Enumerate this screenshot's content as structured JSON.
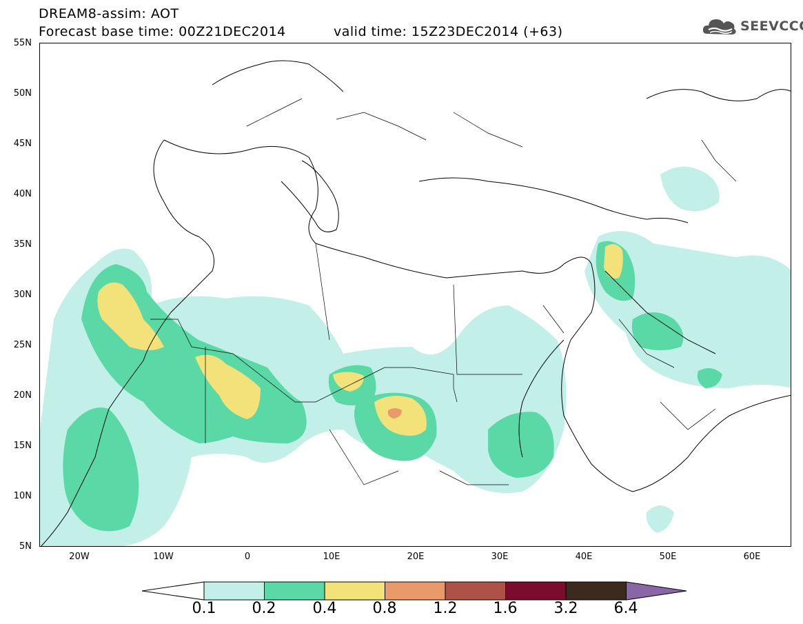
{
  "header": {
    "title": "DREAM8-assim: AOT",
    "base_time": "Forecast base time: 00Z21DEC2014",
    "valid_time": "valid time: 15Z23DEC2014 (+63)",
    "logo_text": "SEEVCCC"
  },
  "map": {
    "variable": "AOT",
    "region": {
      "lon": [
        -25,
        65
      ],
      "lat": [
        5,
        55
      ]
    },
    "y_ticks": [
      "55N",
      "50N",
      "45N",
      "40N",
      "35N",
      "30N",
      "25N",
      "20N",
      "15N",
      "10N",
      "5N"
    ],
    "x_ticks": [
      "20W",
      "10W",
      "0",
      "10E",
      "20E",
      "30E",
      "40E",
      "50E",
      "60E"
    ],
    "land_color": "#ffffff",
    "border_color": "#000000"
  },
  "legend": {
    "levels": [
      "0.1",
      "0.2",
      "0.4",
      "0.8",
      "1.2",
      "1.6",
      "3.2",
      "6.4"
    ],
    "colors": [
      "#c2f0e8",
      "#5ad9a6",
      "#f3e17a",
      "#e89a6b",
      "#ae5248",
      "#7a0c2e",
      "#3b2a1d",
      "#8b66a6"
    ],
    "under_color": "#ffffff",
    "over_color": "#8b66a6"
  }
}
